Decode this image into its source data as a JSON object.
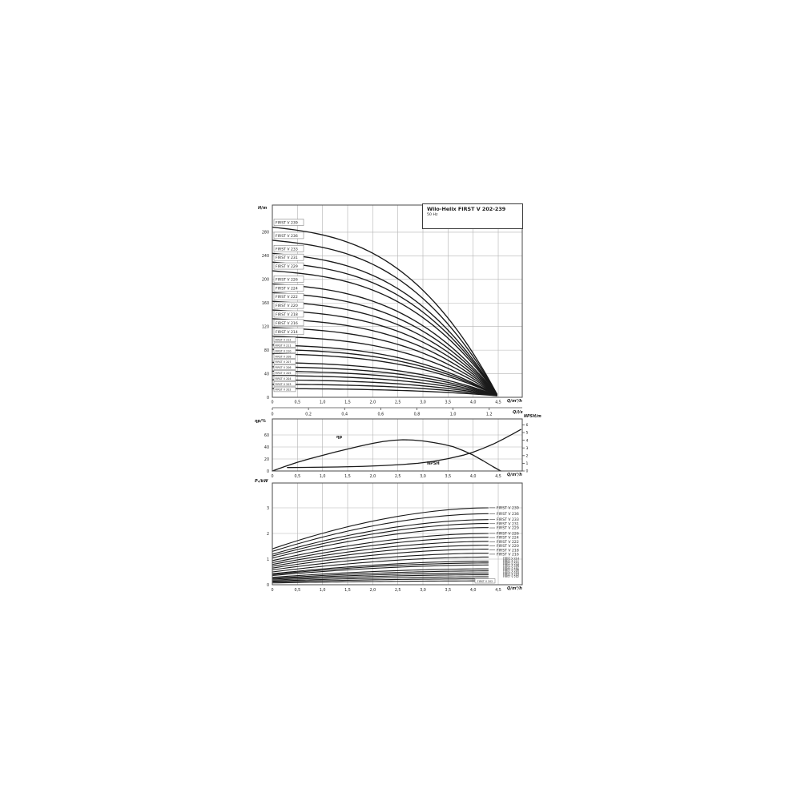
{
  "header": {
    "title": "Wilo-Helix FIRST V 202-239",
    "subtitle": "50 Hz"
  },
  "axis_labels": {
    "head": "H/m",
    "flow_m3h": "Q/m³/h",
    "flow_ls": "Q/l/s",
    "eta": "ηp/%",
    "npsh": "NPSH/m",
    "power": "P₂/kW"
  },
  "curve_labels": {
    "eta": "ηp",
    "npsh": "NPSH",
    "power_box": "FIRST V 202"
  },
  "colors": {
    "curve": "#1a1a1a",
    "grid": "#b3b3b3",
    "border": "#4a4a4a",
    "text": "#1a1a1a",
    "box_border": "#6a6a6a"
  },
  "chart_data": [
    {
      "type": "line",
      "id": "head-flow",
      "title": "Wilo-Helix FIRST V 202-239  50 Hz",
      "xlabel": "Q/m³/h",
      "ylabel": "H/m",
      "xlim": [
        0,
        4.98
      ],
      "ylim": [
        0,
        326
      ],
      "xtick_values": [
        0,
        0.5,
        1.0,
        1.5,
        2.0,
        2.5,
        3.0,
        3.5,
        4.0,
        4.5
      ],
      "xtick_labels": [
        "0",
        "0,5",
        "1,0",
        "1,5",
        "2,0",
        "2,5",
        "3,0",
        "3,5",
        "4,0",
        "4,5"
      ],
      "ytick_values": [
        0,
        40,
        80,
        120,
        160,
        200,
        240,
        280
      ],
      "secondary_x": {
        "label": "Q/l/s",
        "tick_values": [
          0,
          0.2,
          0.4,
          0.6,
          0.8,
          1.0,
          1.2
        ],
        "tick_labels": [
          "0",
          "0,2",
          "0,4",
          "0,6",
          "0,8",
          "1,0",
          "1,2"
        ]
      },
      "flow_end_m3h": 4.47,
      "series": [
        {
          "name": "FIRST V 239",
          "shutoff_head_m": 288.6,
          "small_label": false
        },
        {
          "name": "FIRST V 236",
          "shutoff_head_m": 266.4,
          "small_label": false
        },
        {
          "name": "FIRST V 233",
          "shutoff_head_m": 244.2,
          "small_label": false
        },
        {
          "name": "FIRST V 231",
          "shutoff_head_m": 229.4,
          "small_label": false
        },
        {
          "name": "FIRST V 229",
          "shutoff_head_m": 214.6,
          "small_label": false
        },
        {
          "name": "FIRST V 226",
          "shutoff_head_m": 192.4,
          "small_label": false
        },
        {
          "name": "FIRST V 224",
          "shutoff_head_m": 177.6,
          "small_label": false
        },
        {
          "name": "FIRST V 222",
          "shutoff_head_m": 162.8,
          "small_label": false
        },
        {
          "name": "FIRST V 220",
          "shutoff_head_m": 148.0,
          "small_label": false
        },
        {
          "name": "FIRST V 218",
          "shutoff_head_m": 133.2,
          "small_label": false
        },
        {
          "name": "FIRST V 216",
          "shutoff_head_m": 118.4,
          "small_label": false
        },
        {
          "name": "FIRST V 214",
          "shutoff_head_m": 103.6,
          "small_label": false
        },
        {
          "name": "FIRST V 212",
          "shutoff_head_m": 88.8,
          "small_label": true
        },
        {
          "name": "FIRST V 211",
          "shutoff_head_m": 81.4,
          "small_label": true
        },
        {
          "name": "FIRST V 210",
          "shutoff_head_m": 74.0,
          "small_label": true
        },
        {
          "name": "FIRST V 208",
          "shutoff_head_m": 59.2,
          "small_label": true
        },
        {
          "name": "FIRST V 207",
          "shutoff_head_m": 51.8,
          "small_label": true
        },
        {
          "name": "FIRST V 206",
          "shutoff_head_m": 44.4,
          "small_label": true
        },
        {
          "name": "FIRST V 205",
          "shutoff_head_m": 37.0,
          "small_label": true
        },
        {
          "name": "FIRST V 204",
          "shutoff_head_m": 29.6,
          "small_label": true
        },
        {
          "name": "FIRST V 203",
          "shutoff_head_m": 22.2,
          "small_label": true
        },
        {
          "name": "FIRST V 202",
          "shutoff_head_m": 14.8,
          "small_label": true
        }
      ]
    },
    {
      "type": "line",
      "id": "eta-npsh",
      "xlabel": "Q/m³/h",
      "left_axis": {
        "label": "ηp/%",
        "tick_values": [
          0,
          20,
          40,
          60
        ]
      },
      "right_axis": {
        "label": "NPSH/m",
        "tick_values": [
          0,
          1,
          2,
          3,
          4,
          5,
          6
        ]
      },
      "xtick_values": [
        0,
        0.5,
        1.0,
        1.5,
        2.0,
        2.5,
        3.0,
        3.5,
        4.0,
        4.5
      ],
      "xtick_labels": [
        "0",
        "0,5",
        "1,0",
        "1,5",
        "2,0",
        "2,5",
        "3,0",
        "3,5",
        "4,0",
        "4,5"
      ],
      "series": [
        {
          "name": "ηp",
          "axis": "left",
          "points": [
            [
              0,
              0
            ],
            [
              0.25,
              7.5
            ],
            [
              0.5,
              14.5
            ],
            [
              0.75,
              20.5
            ],
            [
              1.0,
              26
            ],
            [
              1.25,
              31.5
            ],
            [
              1.5,
              36.5
            ],
            [
              1.75,
              41.5
            ],
            [
              2.0,
              46
            ],
            [
              2.2,
              49
            ],
            [
              2.4,
              51
            ],
            [
              2.6,
              52
            ],
            [
              2.8,
              51.5
            ],
            [
              3.0,
              50
            ],
            [
              3.2,
              47.5
            ],
            [
              3.4,
              44.5
            ],
            [
              3.6,
              40.5
            ],
            [
              3.8,
              34
            ],
            [
              4.0,
              26.5
            ],
            [
              4.2,
              17
            ],
            [
              4.4,
              7
            ],
            [
              4.55,
              0
            ]
          ]
        },
        {
          "name": "NPSH",
          "axis": "right",
          "points": [
            [
              0.3,
              0.45
            ],
            [
              0.8,
              0.48
            ],
            [
              1.3,
              0.52
            ],
            [
              1.8,
              0.6
            ],
            [
              2.2,
              0.7
            ],
            [
              2.6,
              0.85
            ],
            [
              2.9,
              1.0
            ],
            [
              3.2,
              1.25
            ],
            [
              3.5,
              1.6
            ],
            [
              3.8,
              2.05
            ],
            [
              4.0,
              2.45
            ],
            [
              4.2,
              2.95
            ],
            [
              4.4,
              3.5
            ],
            [
              4.6,
              4.15
            ],
            [
              4.8,
              4.85
            ],
            [
              4.95,
              5.4
            ]
          ]
        }
      ]
    },
    {
      "type": "line",
      "id": "power-flow",
      "xlabel": "Q/m³/h",
      "ylabel": "P₂/kW",
      "ytick_values": [
        0,
        1,
        2,
        3
      ],
      "xtick_values": [
        0,
        0.5,
        1.0,
        1.5,
        2.0,
        2.5,
        3.0,
        3.5,
        4.0,
        4.5
      ],
      "xtick_labels": [
        "0",
        "0,5",
        "1,0",
        "1,5",
        "2,0",
        "2,5",
        "3,0",
        "3,5",
        "4,0",
        "4,5"
      ],
      "flow_end_m3h": 4.3,
      "series": [
        {
          "name": "FIRST V 239",
          "p_start_kw": 1.4,
          "p_max_kw": 3.0,
          "small_label": false
        },
        {
          "name": "FIRST V 236",
          "p_start_kw": 1.3,
          "p_max_kw": 2.77,
          "small_label": false
        },
        {
          "name": "FIRST V 233",
          "p_start_kw": 1.19,
          "p_max_kw": 2.54,
          "small_label": false
        },
        {
          "name": "FIRST V 231",
          "p_start_kw": 1.12,
          "p_max_kw": 2.39,
          "small_label": false
        },
        {
          "name": "FIRST V 229",
          "p_start_kw": 1.04,
          "p_max_kw": 2.23,
          "small_label": false
        },
        {
          "name": "FIRST V 226",
          "p_start_kw": 0.94,
          "p_max_kw": 2.0,
          "small_label": false
        },
        {
          "name": "FIRST V 224",
          "p_start_kw": 0.86,
          "p_max_kw": 1.85,
          "small_label": false
        },
        {
          "name": "FIRST V 222",
          "p_start_kw": 0.79,
          "p_max_kw": 1.69,
          "small_label": false
        },
        {
          "name": "FIRST V 220",
          "p_start_kw": 0.72,
          "p_max_kw": 1.54,
          "small_label": false
        },
        {
          "name": "FIRST V 218",
          "p_start_kw": 0.65,
          "p_max_kw": 1.39,
          "small_label": false
        },
        {
          "name": "FIRST V 216",
          "p_start_kw": 0.58,
          "p_max_kw": 1.23,
          "small_label": false
        },
        {
          "name": "FIRST V 214",
          "p_start_kw": 0.5,
          "p_max_kw": 1.08,
          "small_label": true
        },
        {
          "name": "FIRST V 212",
          "p_start_kw": 0.43,
          "p_max_kw": 0.92,
          "small_label": true
        },
        {
          "name": "FIRST V 211",
          "p_start_kw": 0.4,
          "p_max_kw": 0.85,
          "small_label": true
        },
        {
          "name": "FIRST V 210",
          "p_start_kw": 0.36,
          "p_max_kw": 0.77,
          "small_label": true
        },
        {
          "name": "FIRST V 208",
          "p_start_kw": 0.29,
          "p_max_kw": 0.62,
          "small_label": true
        },
        {
          "name": "FIRST V 207",
          "p_start_kw": 0.25,
          "p_max_kw": 0.54,
          "small_label": true
        },
        {
          "name": "FIRST V 206",
          "p_start_kw": 0.22,
          "p_max_kw": 0.46,
          "small_label": true
        },
        {
          "name": "FIRST V 205",
          "p_start_kw": 0.18,
          "p_max_kw": 0.39,
          "small_label": true
        },
        {
          "name": "FIRST V 204",
          "p_start_kw": 0.14,
          "p_max_kw": 0.31,
          "small_label": true
        },
        {
          "name": "FIRST V 203",
          "p_start_kw": 0.11,
          "p_max_kw": 0.23,
          "small_label": true
        },
        {
          "name": "FIRST V 202",
          "p_start_kw": 0.07,
          "p_max_kw": 0.15,
          "small_label": true
        }
      ]
    }
  ]
}
